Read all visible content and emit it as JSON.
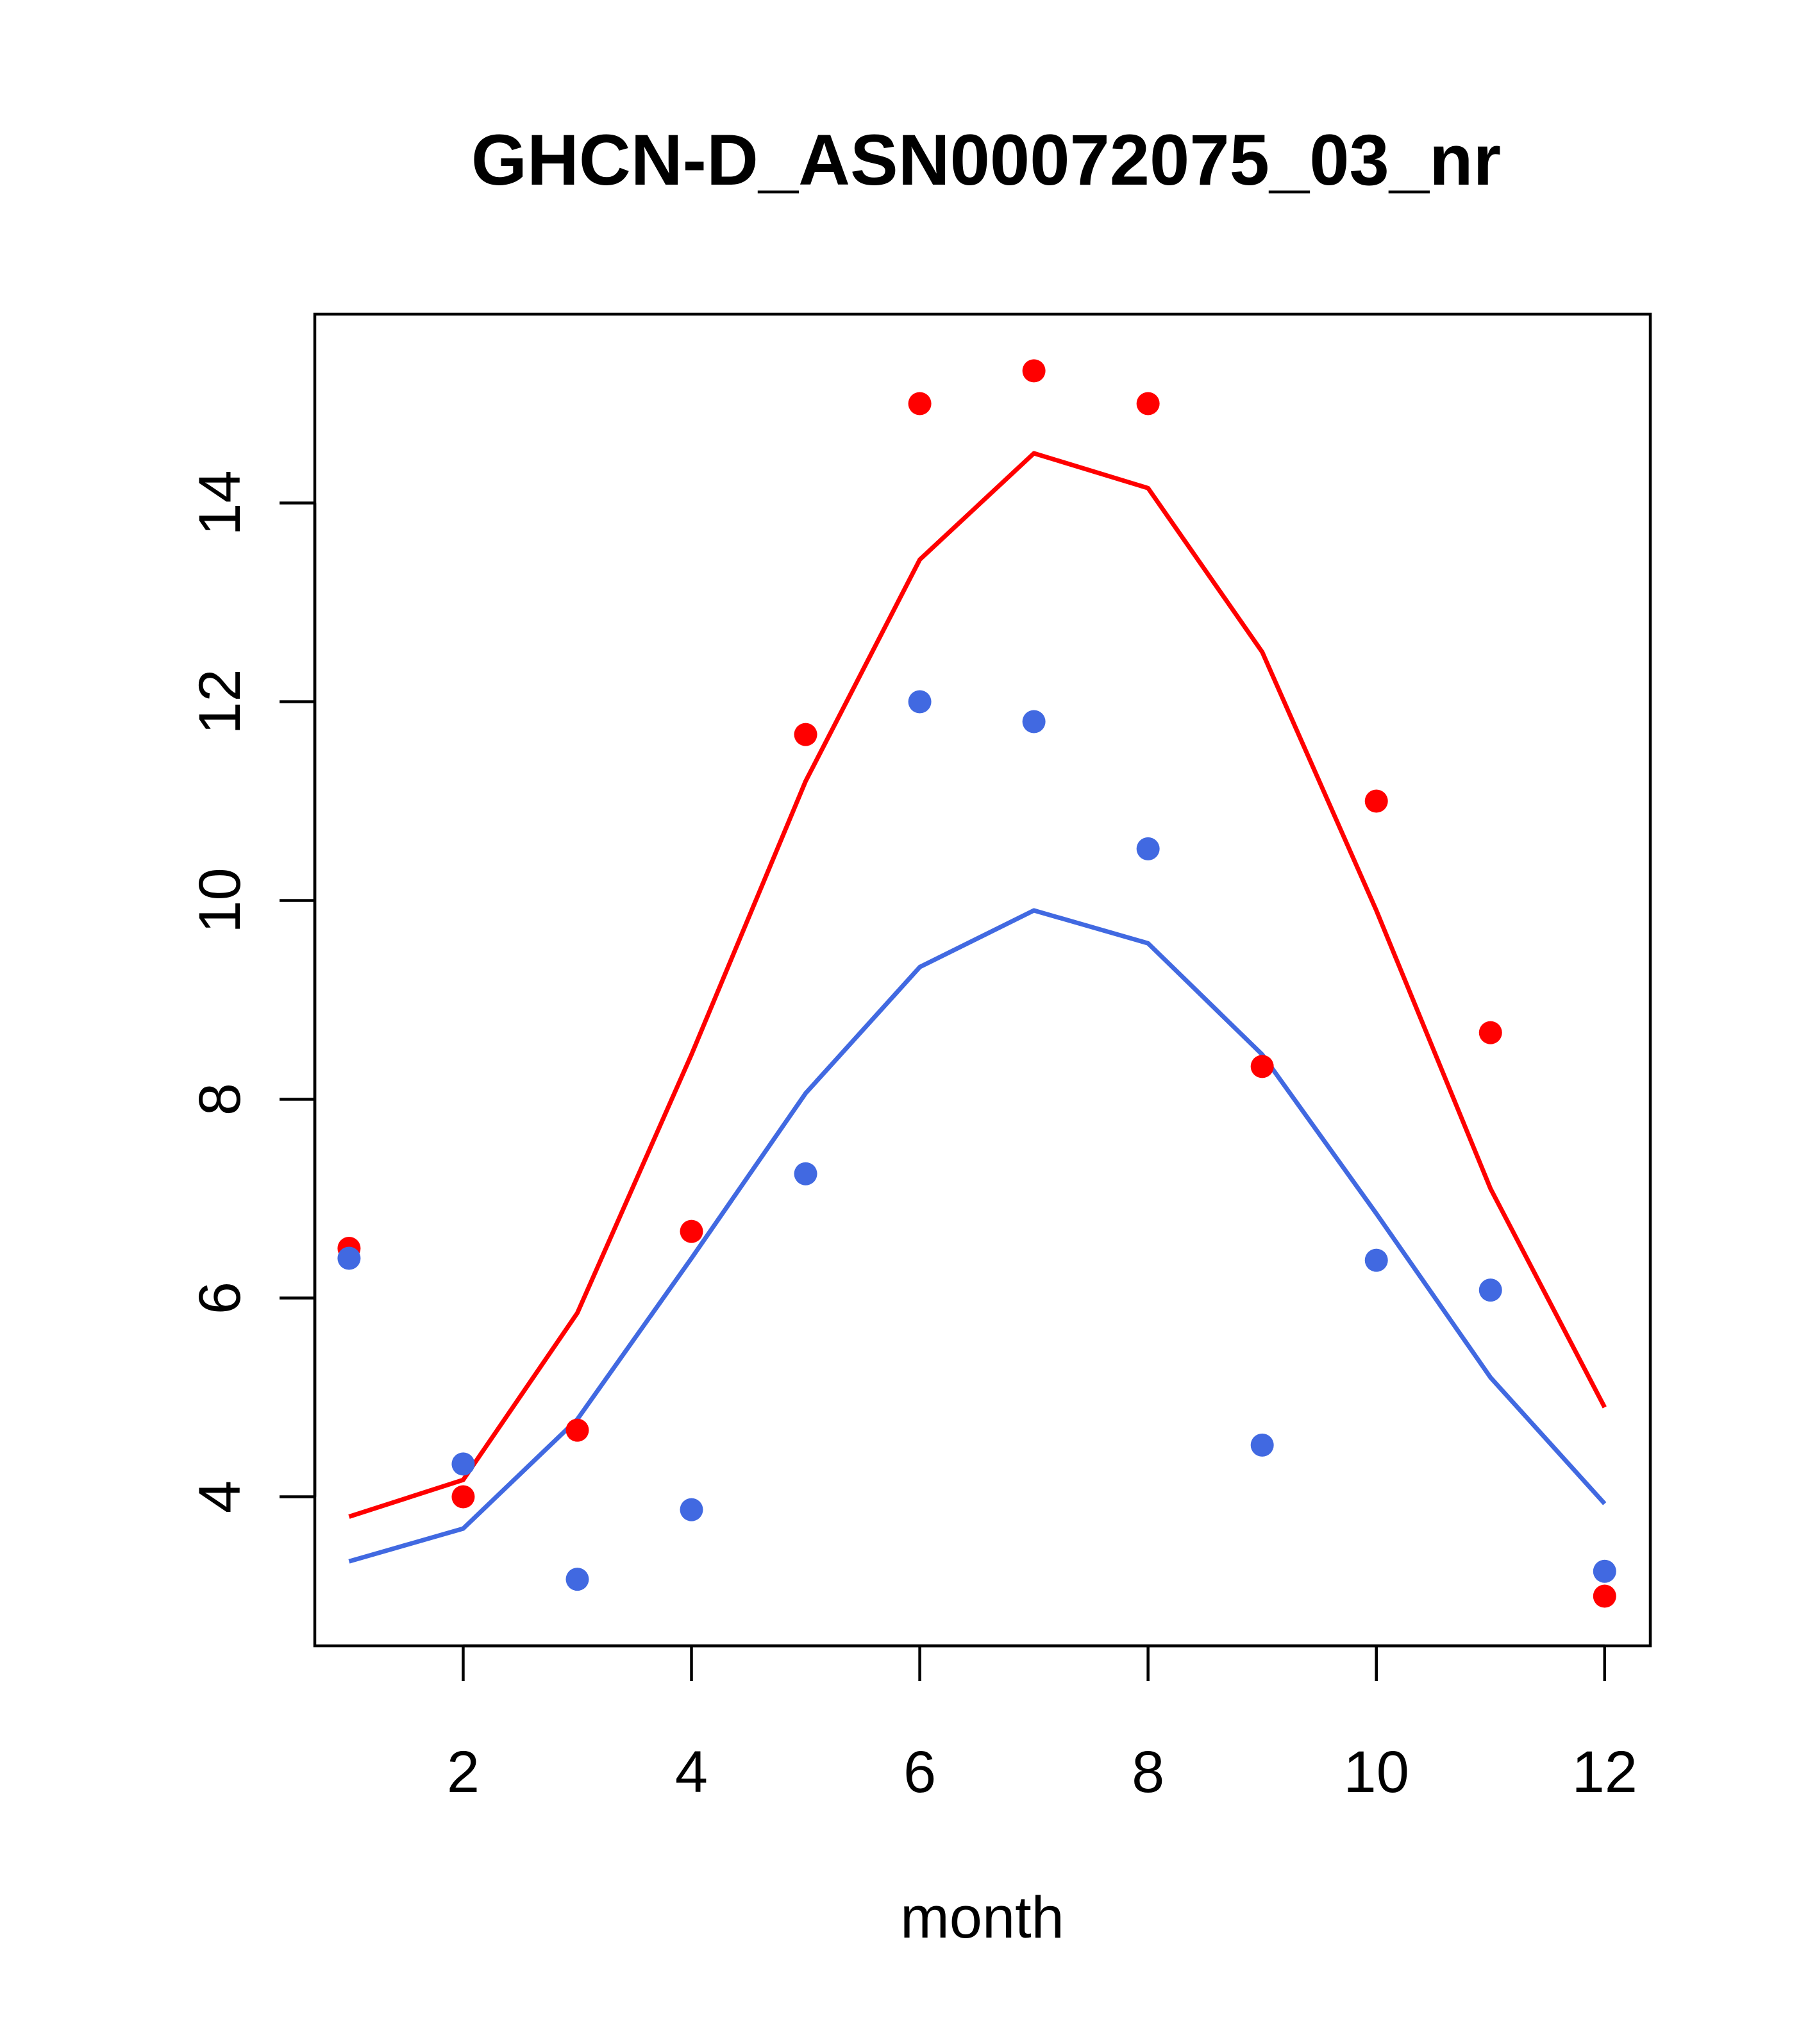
{
  "chart_data": {
    "type": "scatter",
    "title": "GHCN-D_ASN00072075_03_nr",
    "xlabel": "month",
    "ylabel": "",
    "xlim": [
      0.7,
      12.4
    ],
    "ylim": [
      2.5,
      15.9
    ],
    "x_ticks": [
      2,
      4,
      6,
      8,
      10,
      12
    ],
    "y_ticks": [
      4,
      6,
      8,
      10,
      12,
      14
    ],
    "grid": false,
    "series": [
      {
        "color": "#ff0000",
        "points_x": [
          1,
          2,
          3,
          4,
          5,
          6,
          7,
          8,
          9,
          10,
          11,
          12
        ],
        "points_y": [
          6.5,
          4.0,
          4.67,
          6.67,
          11.67,
          15.0,
          15.33,
          15.0,
          8.33,
          11.0,
          8.67,
          3.0
        ],
        "line_x": [
          1,
          2,
          3,
          4,
          5,
          6,
          7,
          8,
          9,
          10,
          11,
          12
        ],
        "line_y": [
          3.8,
          4.17,
          5.85,
          8.45,
          11.2,
          13.43,
          14.5,
          14.15,
          12.5,
          9.9,
          7.1,
          4.9
        ]
      },
      {
        "color": "#4169e1",
        "points_x": [
          1,
          2,
          3,
          4,
          5,
          6,
          7,
          8,
          9,
          10,
          11,
          12
        ],
        "points_y": [
          6.4,
          4.33,
          3.17,
          3.87,
          7.25,
          12.0,
          11.8,
          10.52,
          4.52,
          6.38,
          6.08,
          3.25
        ],
        "line_x": [
          1,
          2,
          3,
          4,
          5,
          6,
          7,
          8,
          9,
          10,
          11,
          12
        ],
        "line_y": [
          3.35,
          3.68,
          4.78,
          6.4,
          8.06,
          9.33,
          9.9,
          9.57,
          8.45,
          6.85,
          5.2,
          3.93
        ]
      }
    ]
  }
}
